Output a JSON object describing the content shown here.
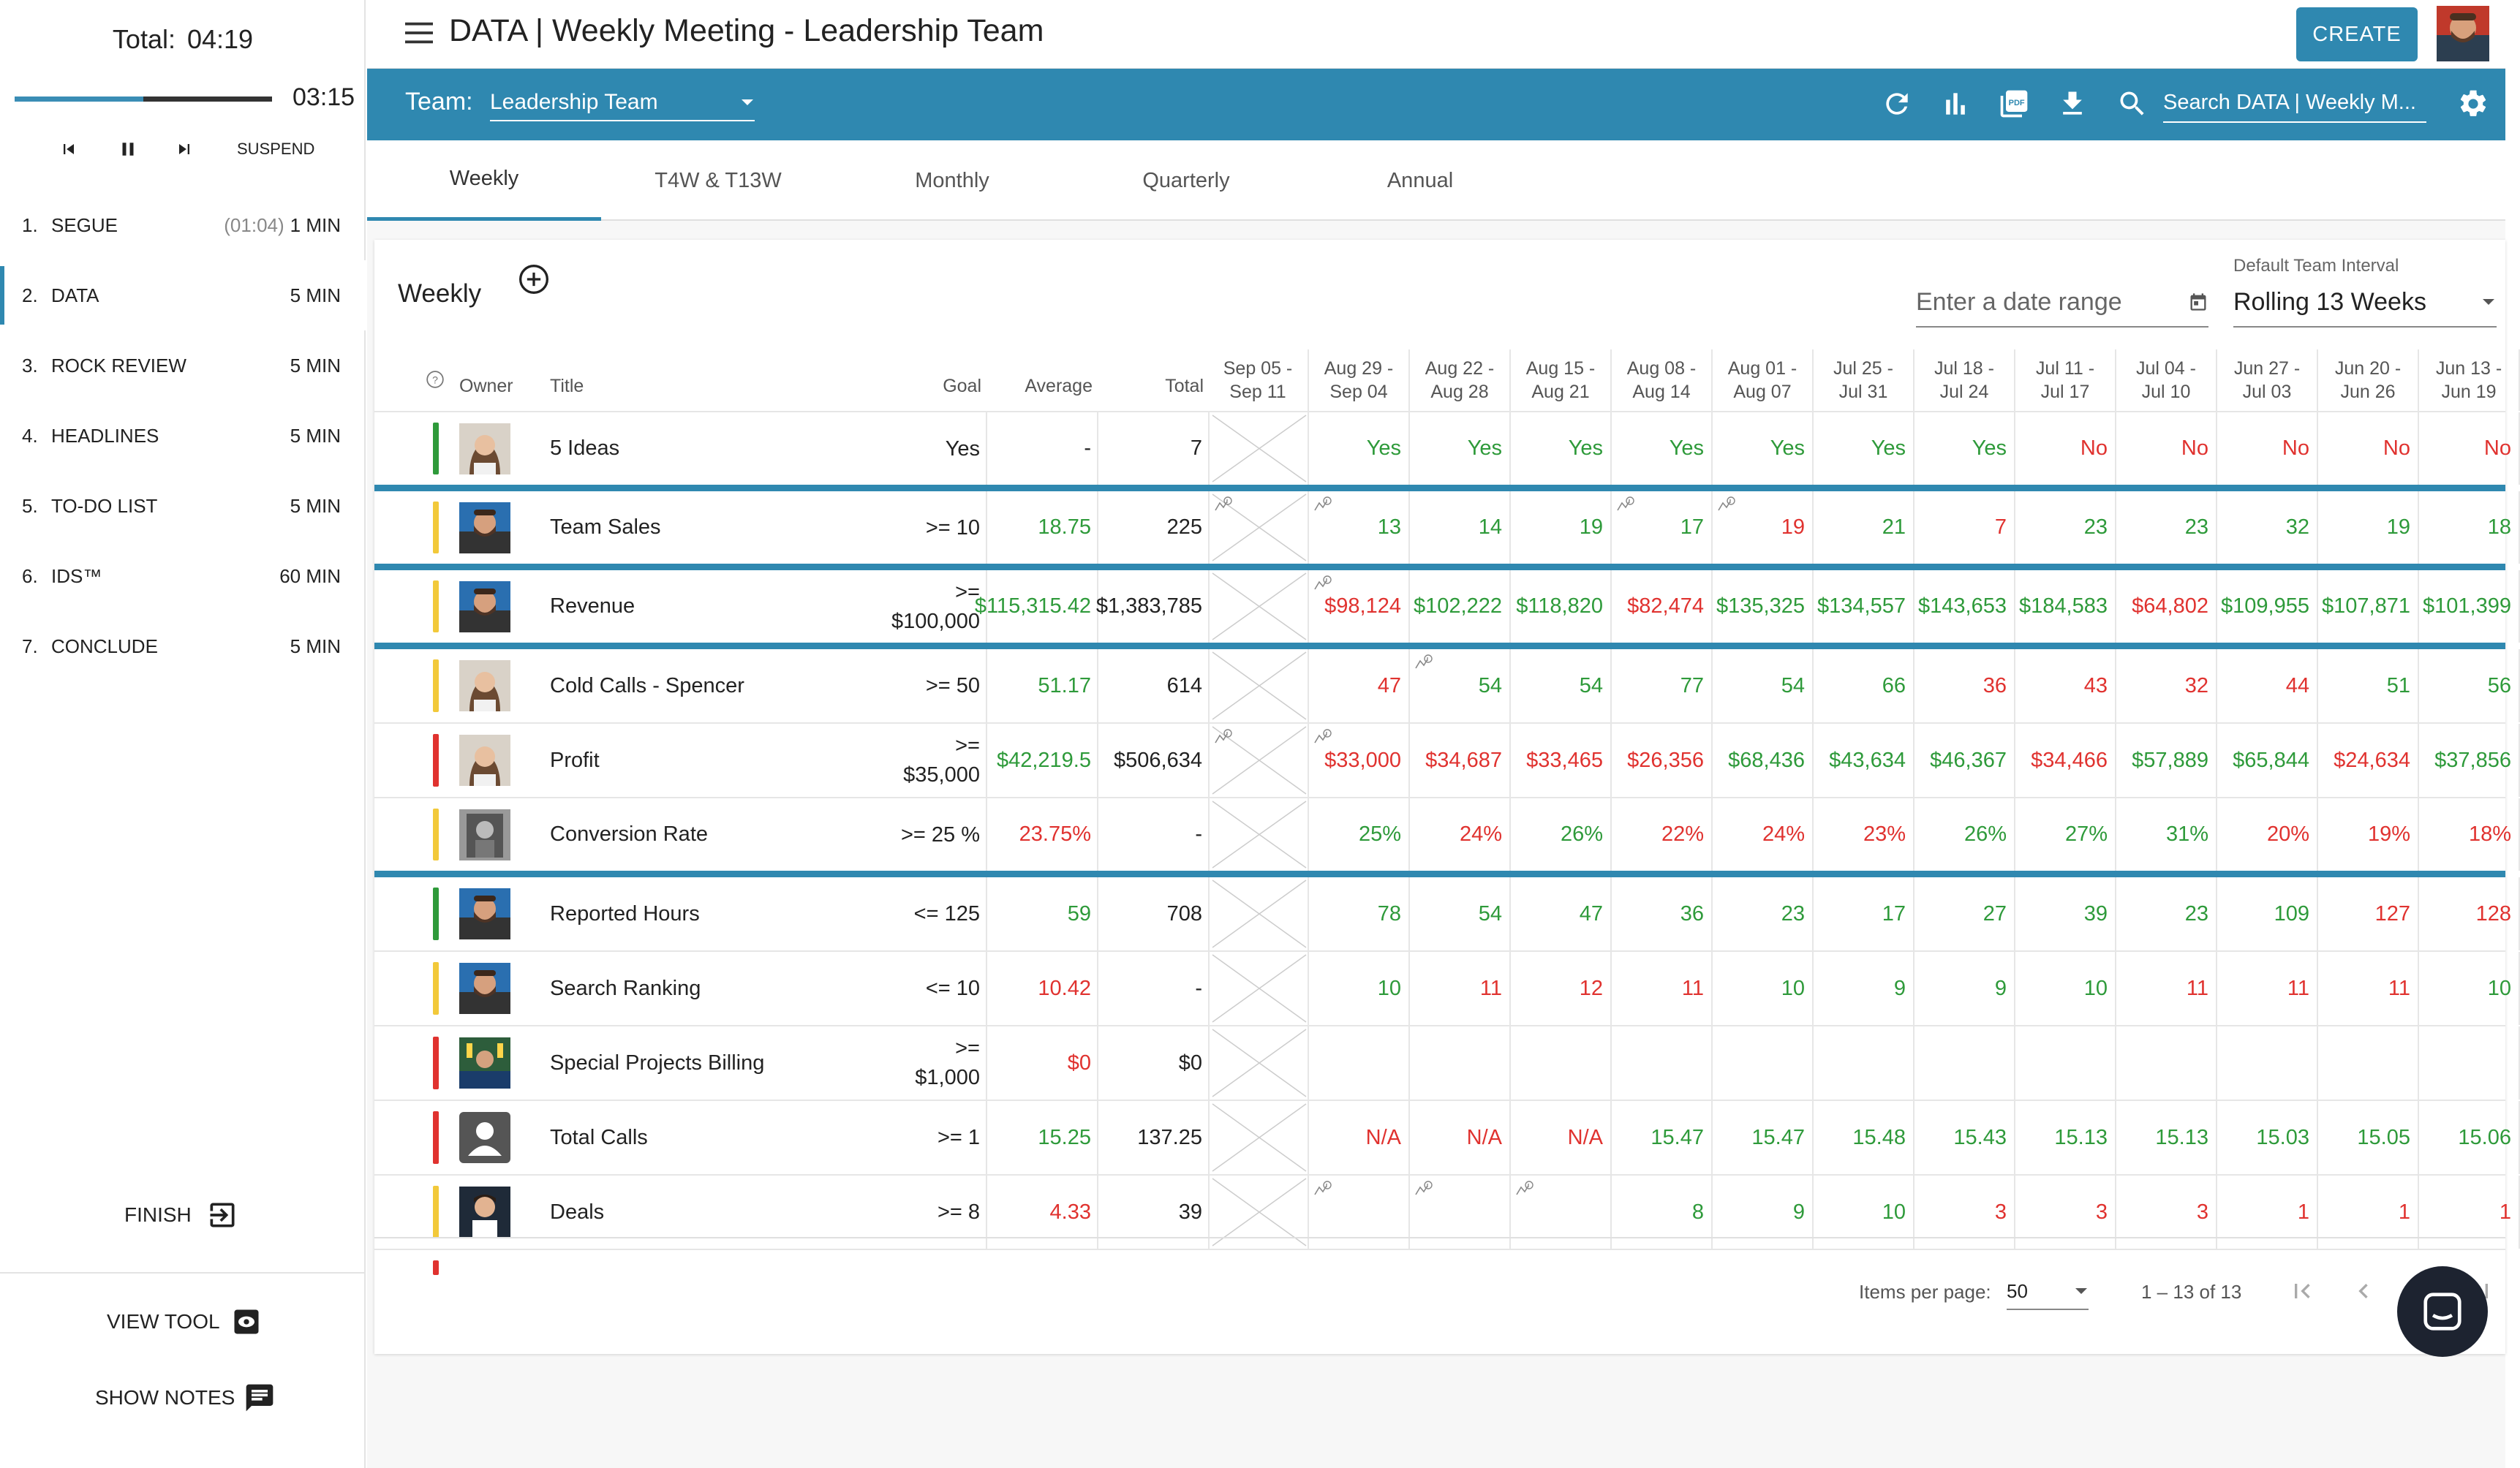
{
  "sidebar": {
    "total_label": "Total:",
    "total_time": "04:19",
    "time_left": "03:15",
    "progress": 0.5,
    "suspend_label": "SUSPEND",
    "agenda": [
      {
        "num": "1.",
        "title": "SEGUE",
        "elapsed": "(01:04)",
        "duration": "1 MIN"
      },
      {
        "num": "2.",
        "title": "DATA",
        "elapsed": "",
        "duration": "5 MIN"
      },
      {
        "num": "3.",
        "title": "ROCK REVIEW",
        "elapsed": "",
        "duration": "5 MIN"
      },
      {
        "num": "4.",
        "title": "HEADLINES",
        "elapsed": "",
        "duration": "5 MIN"
      },
      {
        "num": "5.",
        "title": "TO-DO LIST",
        "elapsed": "",
        "duration": "5 MIN"
      },
      {
        "num": "6.",
        "title": "IDS™",
        "elapsed": "",
        "duration": "60 MIN"
      },
      {
        "num": "7.",
        "title": "CONCLUDE",
        "elapsed": "",
        "duration": "5 MIN"
      }
    ],
    "finish_label": "FINISH",
    "view_tool_label": "VIEW TOOL",
    "show_notes_label": "SHOW NOTES"
  },
  "header": {
    "title": "DATA | Weekly Meeting - Leadership Team",
    "create_label": "CREATE"
  },
  "teambar": {
    "team_label": "Team:",
    "team_value": "Leadership Team",
    "search_placeholder": "Search DATA | Weekly M..."
  },
  "tabs": [
    "Weekly",
    "T4W & T13W",
    "Monthly",
    "Quarterly",
    "Annual"
  ],
  "card": {
    "title": "Weekly",
    "date_range_placeholder": "Enter a date range",
    "interval_label": "Default Team Interval",
    "interval_value": "Rolling 13 Weeks"
  },
  "table": {
    "headers": {
      "owner": "Owner",
      "title": "Title",
      "goal": "Goal",
      "average": "Average",
      "total": "Total"
    },
    "weeks": [
      [
        "Sep 05 -",
        "Sep 11"
      ],
      [
        "Aug 29 -",
        "Sep 04"
      ],
      [
        "Aug 22 -",
        "Aug 28"
      ],
      [
        "Aug 15 -",
        "Aug 21"
      ],
      [
        "Aug 08 -",
        "Aug 14"
      ],
      [
        "Aug 01 -",
        "Aug 07"
      ],
      [
        "Jul 25 -",
        "Jul 31"
      ],
      [
        "Jul 18 -",
        "Jul 24"
      ],
      [
        "Jul 11 -",
        "Jul 17"
      ],
      [
        "Jul 04 -",
        "Jul 10"
      ],
      [
        "Jun 27 -",
        "Jul 03"
      ],
      [
        "Jun 20 -",
        "Jun 26"
      ],
      [
        "Jun 13 -",
        "Jun 19"
      ]
    ],
    "rows": [
      {
        "status": "green",
        "avatar": "woman",
        "title": "5 Ideas",
        "goal": [
          "Yes"
        ],
        "avg": "-",
        "avg_color": "",
        "total": "7",
        "sep": true,
        "weeks": [
          null,
          [
            "Yes",
            "g"
          ],
          [
            "Yes",
            "g"
          ],
          [
            "Yes",
            "g"
          ],
          [
            "Yes",
            "g"
          ],
          [
            "Yes",
            "g"
          ],
          [
            "Yes",
            "g"
          ],
          [
            "Yes",
            "g"
          ],
          [
            "No",
            "rd"
          ],
          [
            "No",
            "rd"
          ],
          [
            "No",
            "rd"
          ],
          [
            "No",
            "rd"
          ],
          [
            "No",
            "rd"
          ]
        ],
        "notes": []
      },
      {
        "status": "yellow",
        "avatar": "man",
        "title": "Team Sales",
        "goal": [
          ">= 10"
        ],
        "avg": "18.75",
        "avg_color": "g",
        "total": "225",
        "sep": true,
        "weeks": [
          null,
          [
            "13",
            "g"
          ],
          [
            "14",
            "g"
          ],
          [
            "19",
            "g"
          ],
          [
            "17",
            "g"
          ],
          [
            "19",
            "rd"
          ],
          [
            "21",
            "g"
          ],
          [
            "7",
            "rd"
          ],
          [
            "23",
            "g"
          ],
          [
            "23",
            "g"
          ],
          [
            "32",
            "g"
          ],
          [
            "19",
            "g"
          ],
          [
            "18",
            "g"
          ]
        ],
        "notes": [
          0,
          1,
          4,
          5
        ]
      },
      {
        "status": "yellow",
        "avatar": "man",
        "title": "Revenue",
        "goal": [
          ">=",
          "$100,000"
        ],
        "avg": "$115,315.42",
        "avg_color": "g",
        "total": "$1,383,785",
        "sep": true,
        "weeks": [
          null,
          [
            "$98,124",
            "rd"
          ],
          [
            "$102,222",
            "g"
          ],
          [
            "$118,820",
            "g"
          ],
          [
            "$82,474",
            "rd"
          ],
          [
            "$135,325",
            "g"
          ],
          [
            "$134,557",
            "g"
          ],
          [
            "$143,653",
            "g"
          ],
          [
            "$184,583",
            "g"
          ],
          [
            "$64,802",
            "rd"
          ],
          [
            "$109,955",
            "g"
          ],
          [
            "$107,871",
            "g"
          ],
          [
            "$101,399",
            "g"
          ]
        ],
        "notes": [
          1
        ]
      },
      {
        "status": "yellow",
        "avatar": "woman",
        "title": "Cold Calls - Spencer",
        "goal": [
          ">= 50"
        ],
        "avg": "51.17",
        "avg_color": "g",
        "total": "614",
        "sep": false,
        "weeks": [
          null,
          [
            "47",
            "rd"
          ],
          [
            "54",
            "g"
          ],
          [
            "54",
            "g"
          ],
          [
            "77",
            "g"
          ],
          [
            "54",
            "g"
          ],
          [
            "66",
            "g"
          ],
          [
            "36",
            "rd"
          ],
          [
            "43",
            "rd"
          ],
          [
            "32",
            "rd"
          ],
          [
            "44",
            "rd"
          ],
          [
            "51",
            "g"
          ],
          [
            "56",
            "g"
          ]
        ],
        "notes": [
          2
        ]
      },
      {
        "status": "red",
        "avatar": "woman",
        "title": "Profit",
        "goal": [
          ">=",
          "$35,000"
        ],
        "avg": "$42,219.5",
        "avg_color": "g",
        "total": "$506,634",
        "sep": false,
        "weeks": [
          null,
          [
            "$33,000",
            "rd"
          ],
          [
            "$34,687",
            "rd"
          ],
          [
            "$33,465",
            "rd"
          ],
          [
            "$26,356",
            "rd"
          ],
          [
            "$68,436",
            "g"
          ],
          [
            "$43,634",
            "g"
          ],
          [
            "$46,367",
            "g"
          ],
          [
            "$34,466",
            "rd"
          ],
          [
            "$57,889",
            "g"
          ],
          [
            "$65,844",
            "g"
          ],
          [
            "$24,634",
            "rd"
          ],
          [
            "$37,856",
            "g"
          ]
        ],
        "notes": [
          0,
          1
        ]
      },
      {
        "status": "yellow",
        "avatar": "grey",
        "title": "Conversion Rate",
        "goal": [
          ">= 25 %"
        ],
        "avg": "23.75%",
        "avg_color": "rd",
        "total": "-",
        "sep": true,
        "weeks": [
          null,
          [
            "25%",
            "g"
          ],
          [
            "24%",
            "rd"
          ],
          [
            "26%",
            "g"
          ],
          [
            "22%",
            "rd"
          ],
          [
            "24%",
            "rd"
          ],
          [
            "23%",
            "rd"
          ],
          [
            "26%",
            "g"
          ],
          [
            "27%",
            "g"
          ],
          [
            "31%",
            "g"
          ],
          [
            "20%",
            "rd"
          ],
          [
            "19%",
            "rd"
          ],
          [
            "18%",
            "rd"
          ]
        ],
        "notes": []
      },
      {
        "status": "green",
        "avatar": "man",
        "title": "Reported Hours",
        "goal": [
          "<= 125"
        ],
        "avg": "59",
        "avg_color": "g",
        "total": "708",
        "sep": false,
        "weeks": [
          null,
          [
            "78",
            "g"
          ],
          [
            "54",
            "g"
          ],
          [
            "47",
            "g"
          ],
          [
            "36",
            "g"
          ],
          [
            "23",
            "g"
          ],
          [
            "17",
            "g"
          ],
          [
            "27",
            "g"
          ],
          [
            "39",
            "g"
          ],
          [
            "23",
            "g"
          ],
          [
            "109",
            "g"
          ],
          [
            "127",
            "rd"
          ],
          [
            "128",
            "rd"
          ]
        ],
        "notes": []
      },
      {
        "status": "yellow",
        "avatar": "man",
        "title": "Search Ranking",
        "goal": [
          "<= 10"
        ],
        "avg": "10.42",
        "avg_color": "rd",
        "total": "-",
        "sep": false,
        "weeks": [
          null,
          [
            "10",
            "g"
          ],
          [
            "11",
            "rd"
          ],
          [
            "12",
            "rd"
          ],
          [
            "11",
            "rd"
          ],
          [
            "10",
            "g"
          ],
          [
            "9",
            "g"
          ],
          [
            "9",
            "g"
          ],
          [
            "10",
            "g"
          ],
          [
            "11",
            "rd"
          ],
          [
            "11",
            "rd"
          ],
          [
            "11",
            "rd"
          ],
          [
            "10",
            "g"
          ]
        ],
        "notes": []
      },
      {
        "status": "red",
        "avatar": "group",
        "title": "Special Projects Billing",
        "goal": [
          ">=",
          "$1,000"
        ],
        "avg": "$0",
        "avg_color": "rd",
        "total": "$0",
        "sep": false,
        "weeks": [
          null,
          [
            "",
            ""
          ],
          [
            "",
            ""
          ],
          [
            "",
            ""
          ],
          [
            "",
            ""
          ],
          [
            "",
            ""
          ],
          [
            "",
            ""
          ],
          [
            "",
            ""
          ],
          [
            "",
            ""
          ],
          [
            "",
            ""
          ],
          [
            "",
            ""
          ],
          [
            "",
            ""
          ],
          [
            "",
            ""
          ]
        ],
        "notes": []
      },
      {
        "status": "red",
        "avatar": "placeholder",
        "title": "Total Calls",
        "goal": [
          ">= 1"
        ],
        "avg": "15.25",
        "avg_color": "g",
        "total": "137.25",
        "sep": false,
        "weeks": [
          null,
          [
            "N/A",
            "rd"
          ],
          [
            "N/A",
            "rd"
          ],
          [
            "N/A",
            "rd"
          ],
          [
            "15.47",
            "g"
          ],
          [
            "15.47",
            "g"
          ],
          [
            "15.48",
            "g"
          ],
          [
            "15.43",
            "g"
          ],
          [
            "15.13",
            "g"
          ],
          [
            "15.13",
            "g"
          ],
          [
            "15.03",
            "g"
          ],
          [
            "15.05",
            "g"
          ],
          [
            "15.06",
            "g"
          ]
        ],
        "notes": []
      },
      {
        "status": "yellow",
        "avatar": "young",
        "title": "Deals",
        "goal": [
          ">= 8"
        ],
        "avg": "4.33",
        "avg_color": "rd",
        "total": "39",
        "sep": false,
        "weeks": [
          null,
          [
            "",
            ""
          ],
          [
            "",
            ""
          ],
          [
            "",
            ""
          ],
          [
            "8",
            "g"
          ],
          [
            "9",
            "g"
          ],
          [
            "10",
            "g"
          ],
          [
            "3",
            "rd"
          ],
          [
            "3",
            "rd"
          ],
          [
            "3",
            "rd"
          ],
          [
            "1",
            "rd"
          ],
          [
            "1",
            "rd"
          ],
          [
            "1",
            "rd"
          ]
        ],
        "notes": [
          1,
          2,
          3
        ]
      }
    ]
  },
  "footer": {
    "items_per_page_label": "Items per page:",
    "items_per_page_value": "50",
    "range_label": "1 – 13 of 13"
  },
  "colors": {
    "primary": "#2f88b0",
    "green": "#2e9a3a",
    "red": "#e0322f",
    "yellow": "#f2c93a",
    "status_green": "#2e9a3a",
    "status_red": "#e0322f"
  }
}
